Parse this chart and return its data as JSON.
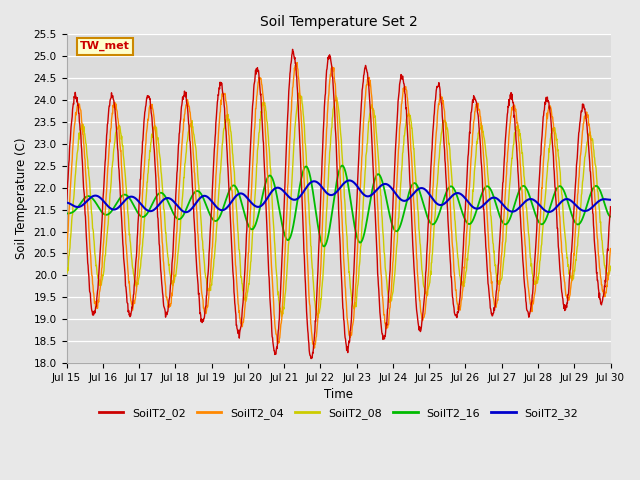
{
  "title": "Soil Temperature Set 2",
  "xlabel": "Time",
  "ylabel": "Soil Temperature (C)",
  "ylim": [
    18.0,
    25.5
  ],
  "yticks": [
    18.0,
    18.5,
    19.0,
    19.5,
    20.0,
    20.5,
    21.0,
    21.5,
    22.0,
    22.5,
    23.0,
    23.5,
    24.0,
    24.5,
    25.0,
    25.5
  ],
  "xtick_labels": [
    "Jul 15",
    "Jul 16",
    "Jul 17",
    "Jul 18",
    "Jul 19",
    "Jul 20",
    "Jul 21",
    "Jul 22",
    "Jul 23",
    "Jul 24",
    "Jul 25",
    "Jul 26",
    "Jul 27",
    "Jul 28",
    "Jul 29",
    "Jul 30"
  ],
  "colors": {
    "SoilT2_02": "#cc0000",
    "SoilT2_04": "#ff8800",
    "SoilT2_08": "#cccc00",
    "SoilT2_16": "#00bb00",
    "SoilT2_32": "#0000cc"
  },
  "annotation_text": "TW_met",
  "annotation_color": "#cc0000",
  "annotation_bg": "#ffffcc",
  "annotation_border": "#cc8800",
  "plot_bg": "#dcdcdc",
  "fig_bg": "#e8e8e8",
  "grid_color": "#ffffff",
  "linewidth": 1.0
}
